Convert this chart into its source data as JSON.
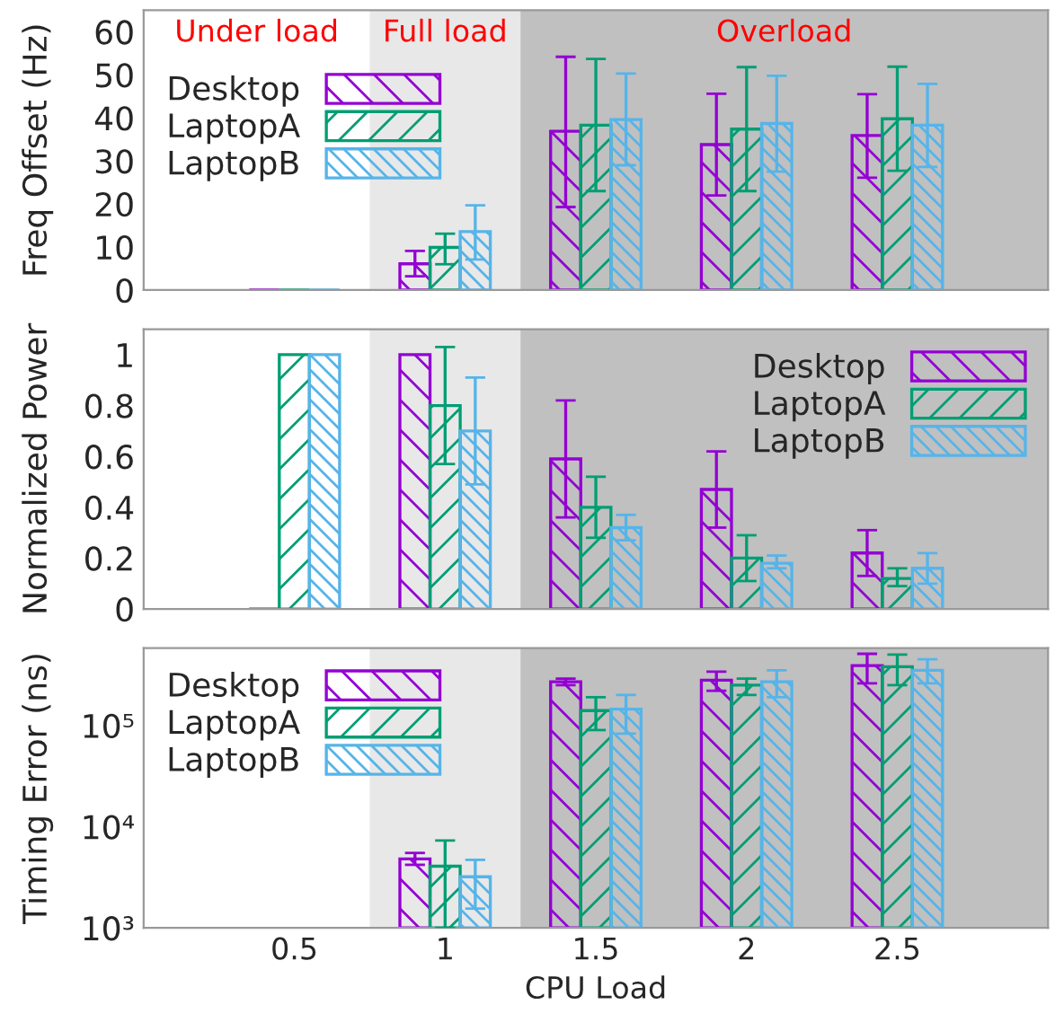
{
  "chart_data": [
    {
      "type": "bar",
      "ylabel": "Freq Offset (Hz)",
      "x": [
        0.5,
        1,
        1.5,
        2,
        2.5
      ],
      "xlim": [
        0,
        3
      ],
      "xticks": [
        0.5,
        1,
        1.5,
        2,
        2.5
      ],
      "ylim": [
        0,
        65
      ],
      "yticks": [
        0,
        10,
        20,
        30,
        40,
        50,
        60
      ],
      "tick_labels": "y",
      "grid": false,
      "legend": "left",
      "annotations": [
        "Under load"
      ],
      "bands": [
        {
          "axis": "x",
          "from": 0.75,
          "to": 1.25,
          "label": "Full load",
          "color": "#e8e8e8"
        },
        {
          "axis": "x",
          "from": 1.25,
          "to": 3,
          "label": "Overload",
          "color": "#c0c0c0"
        }
      ],
      "series": [
        {
          "name": "Desktop",
          "color": "#9400d3",
          "values": [
            0,
            6.1,
            36.9,
            33.8,
            35.9
          ],
          "errors": [
            null,
            [
              3.2,
              9.1
            ],
            [
              19.3,
              54.2
            ],
            [
              22.0,
              45.6
            ],
            [
              26.1,
              45.5
            ]
          ]
        },
        {
          "name": "LaptopA",
          "color": "#009e73",
          "values": [
            0,
            9.9,
            38.3,
            37.4,
            39.8
          ],
          "errors": [
            null,
            [
              6.0,
              13.1
            ],
            [
              23.0,
              53.7
            ],
            [
              23.0,
              51.8
            ],
            [
              27.7,
              51.9
            ]
          ]
        },
        {
          "name": "LaptopB",
          "color": "#56b4e9",
          "values": [
            0,
            13.6,
            39.6,
            38.7,
            38.3
          ],
          "errors": [
            null,
            [
              7.1,
              19.7
            ],
            [
              29.0,
              50.3
            ],
            [
              27.5,
              49.8
            ],
            [
              28.6,
              47.9
            ]
          ]
        }
      ]
    },
    {
      "type": "bar",
      "ylabel": "Normalized Power",
      "x": [
        0.5,
        1,
        1.5,
        2,
        2.5
      ],
      "xlim": [
        0,
        3
      ],
      "xticks": [
        0.5,
        1,
        1.5,
        2,
        2.5
      ],
      "ylim": [
        0,
        1.1
      ],
      "yticks": [
        0,
        0.2,
        0.4,
        0.6,
        0.8,
        1
      ],
      "tick_labels": "y",
      "grid": false,
      "legend": "top right",
      "bands": [
        {
          "axis": "x",
          "from": 0.75,
          "to": 1.25,
          "color": "#e8e8e8"
        },
        {
          "axis": "x",
          "from": 1.25,
          "to": 3,
          "color": "#c0c0c0"
        }
      ],
      "series": [
        {
          "name": "Desktop",
          "color": "#9400d3",
          "values": [
            0,
            1.0,
            0.59,
            0.47,
            0.22
          ],
          "errors": [
            null,
            null,
            [
              0.36,
              0.82
            ],
            [
              0.32,
              0.62
            ],
            [
              0.13,
              0.31
            ]
          ]
        },
        {
          "name": "LaptopA",
          "color": "#009e73",
          "values": [
            1,
            0.8,
            0.4,
            0.2,
            0.12
          ],
          "errors": [
            null,
            [
              0.57,
              1.03
            ],
            [
              0.28,
              0.52
            ],
            [
              0.11,
              0.29
            ],
            [
              0.09,
              0.16
            ]
          ]
        },
        {
          "name": "LaptopB",
          "color": "#56b4e9",
          "values": [
            1,
            0.7,
            0.32,
            0.18,
            0.16
          ],
          "errors": [
            null,
            [
              0.49,
              0.91
            ],
            [
              0.27,
              0.37
            ],
            [
              0.16,
              0.21
            ],
            [
              0.1,
              0.22
            ]
          ]
        }
      ]
    },
    {
      "type": "bar",
      "ylabel": "Timing Error (ns)",
      "xlabel": "CPU Load",
      "xlim": [
        0,
        3
      ],
      "xticks": [
        0.5,
        1,
        1.5,
        2,
        2.5
      ],
      "log": "y",
      "ylim": [
        1000,
        580000
      ],
      "yticks": [
        {
          "value": 1000,
          "label": "10³"
        },
        {
          "value": 10000,
          "label": "10⁴"
        },
        {
          "value": 100000,
          "label": "10⁵"
        }
      ],
      "grid": false,
      "legend": "top left",
      "bands": [
        {
          "axis": "x",
          "from": 0.75,
          "to": 1.25,
          "color": "#e8e8e8"
        },
        {
          "axis": "x",
          "from": 1.25,
          "to": 3,
          "color": "#c0c0c0"
        }
      ],
      "series": [
        {
          "name": "Desktop",
          "color": "#9400d3",
          "x": [
            1,
            1.5,
            2,
            2.5
          ],
          "values": [
            4800,
            270000,
            280000,
            390000
          ],
          "errors": [
            [
              4200,
              5500
            ],
            [
              250000,
              290000
            ],
            [
              220000,
              340000
            ],
            [
              260000,
              510000
            ]
          ]
        },
        {
          "name": "LaptopA",
          "color": "#009e73",
          "x": [
            1,
            1.5,
            2,
            2.5
          ],
          "values": [
            4070,
            140000,
            250000,
            380000
          ],
          "errors": [
            [
              1000,
              7300
            ],
            [
              90000,
              190000
            ],
            [
              200000,
              290000
            ],
            [
              250000,
              500000
            ]
          ]
        },
        {
          "name": "LaptopB",
          "color": "#56b4e9",
          "x": [
            1,
            1.5,
            2,
            2.5
          ],
          "values": [
            3200,
            145000,
            270000,
            350000
          ],
          "errors": [
            [
              1550,
              4700
            ],
            [
              83000,
              200000
            ],
            [
              190000,
              350000
            ],
            [
              260000,
              450000
            ]
          ]
        }
      ]
    }
  ]
}
